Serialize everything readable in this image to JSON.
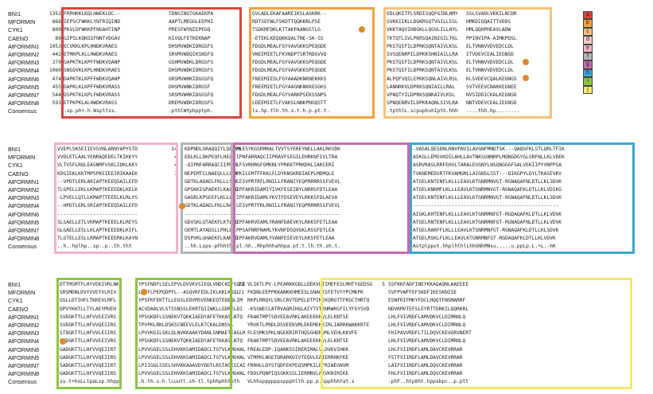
{
  "rows": [
    "BNI1",
    "MFORMIN",
    "CYK1",
    "CAENO",
    "AtFORMIN1",
    "AtFORMIN2",
    "AtFORMIN3",
    "AtFORMIN4",
    "AtFORMIN6",
    "AtFORMIN5",
    "AtFORMIN7",
    "AtFORMIN8",
    "Consensus"
  ],
  "legend": [
    {
      "letter": "a",
      "color": "#d9453d"
    },
    {
      "letter": "b",
      "color": "#f2a33a"
    },
    {
      "letter": "c",
      "color": "#f6c27c"
    },
    {
      "letter": "d",
      "color": "#f4c9c9"
    },
    {
      "letter": "e",
      "color": "#f2b3c8"
    },
    {
      "letter": "f",
      "color": "#b3b3b3"
    },
    {
      "letter": "g",
      "color": "#c86ab0"
    },
    {
      "letter": "h",
      "color": "#3aa6d6"
    },
    {
      "letter": "i",
      "color": "#8cc63f"
    },
    {
      "letter": "j",
      "color": "#f3e96a"
    }
  ],
  "block1": {
    "start_numbers": [
      "1352",
      "868",
      "809",
      "89",
      "1053",
      "442",
      "379",
      "1060",
      "474",
      "455",
      "544",
      "591",
      ""
    ],
    "seg1": [
      "FRPHKKLKQLHWEKLDC--",
      "IEPSCFWKKLYNTRIQIND",
      "PKVLDFWKKPFNGAHTINP",
      "GIPSLKQKGSFNNTVDGAV",
      "ECVKKLKPLHNDKVRAES",
      "ETMKPLKLLHWDKVRAES",
      "GAPKTKLKPFFWDKVQANP",
      "SNGQVKLKPLHNDKVRAES",
      "DAPKTKLKPFFWDKVQANP",
      "DAPKLKLKPFFWDKVRASS",
      "DSPKTKLKPLFWDKVRASS",
      "ETPKPKLALHWDKVRASS",
      ".sp.ph+.h.Wspltss."
    ],
    "seg2": [
      "TDNSINGTGKAEKPA",
      "AAPTLMEGGLEEPHI",
      "PRESFWYNIEPEGQ",
      "KIVQLFETKEKNAP",
      "DHSMVWDKIDRGSFS",
      "SRVMVWDQIKSNSFQ",
      "GSHMVWDKLDRGSFS",
      "DHSMVWDKIDRGSFS",
      "GRSMVWHKIDGGSFQ",
      "DHSMVWNKIDRGSF",
      "SRSMVWHKIDGGSFQ",
      "DREMVWDKIDRGSFS",
      ".pthlWtphpptph."
    ],
    "seg3": [
      "GVLADLEKAFAAREIKSLASKRK--",
      "RDTSEFWLFSKDTTQQKKRLPSE",
      "TSDKMFDKLKTTAKPAANGSTLG",
      "-ETEKLKEQQKKQALTNE-SK-SS",
      "FDGDLMEALFGYVAVGKKSPEQGDE",
      "VNEEMIETLFKVNDPTSRTRDGVVQ",
      "FDGDLMEALFGYVAVGKKSPEQGDE",
      "FDGDLMEALFGYVAVGKKSPEQGDE",
      "FNEEMIESLFGYAAADKNKNEKKKS",
      "FNEEMIETLFGYAAGNKNKKESGKS",
      "FDGDLMEALFGYVARKPSEKSSNPS",
      "LDEEMIETLFVAKSLNNKPNGQSTT",
      "ls.hp.tlh.th.s.t.h.p.pt.t."
    ],
    "seg4": [
      "EDLQKITFLSRDISQQFGINLHMY",
      "SVKKIIKLLDGKRSQTVGILLSSL",
      "VKKTAQVIHDGKLLQGVLILLHYL",
      "TKTQTLSVLPKRSQAINIGILTKL",
      "PKSTQIFILDPRKSQNTAIVLKSL",
      "SVSQENRPILDPKKSHNIAILLRA",
      "PKSTQIFILDPRKSQNTAIVLKSL",
      "PKSTQIFILDPRKSQNTAIVLKSL",
      "ALPQFVQILEPKKSQNLAIVLRSL",
      "LANNRKVLDPKKSQNIAILLRAL",
      "VPNQTYILDPRKSQNKAIVLKSL",
      "SPNQENRVILDPKKAQNLSIVLRA",
      ".tpthlL.scpuphuhIpth.hhh"
    ],
    "seg4b": [
      "SSLSVADLVKKILNCDR",
      "HMKDIQQAITTVDDS",
      "HMLQQHPHEAVLADW",
      "PPINVIPA-AIMKPDSL",
      "ELTVNNVVDVEDCLDL",
      "ITVDEVCEALIEGNSD",
      "ELTVNNVVDVEDCLDL",
      "ELTVNNVVDVEDCLDL",
      "KLSVDEVCQALKEGNGS",
      "SVTVEEVCNAKKEGNEE",
      "NVSIDDICKALKEGNSD",
      "NNTVDEVCEALIEGNSD",
      "....thh.hp........"
    ]
  },
  "block2": {
    "seg1": [
      "VVEPLSKSEIIEVSVNLARNYAPYSTD",
      "VVDLETLAALYENRAQEDELTKIKKYY",
      "VLTVSFLRQLEASNMFVSKLIDKLKKY",
      "KDGIEKLKKTMPSPKEIEEIRIKAAEK",
      "--VPDTLERLARIAPTKEEQSAILEFD",
      "TLGPELLEKLLKMAPTKEEEDKLKELK",
      "-LPVELLQTLLKMAPTTEEELKLRLYS",
      "--HPDTLERLSRIAPTKEEQSAILEFD",
      "---------------------------",
      "SLSAELLETLVKMAPTKEEELKLREYS",
      "GLGAELLESLLKLAPTKEEEDKLKIFL",
      "TLGTELLESLLKMAPTKEEERKLKAYN",
      "..h..hplhp..sp..p..th.tht"
    ],
    "seg1num": [
      "14",
      "",
      "",
      "",
      "4",
      "4",
      "",
      "",
      "",
      "",
      "",
      "1",
      ""
    ],
    "seg2": [
      "KDPNDLGRAQQIYLQLMVN",
      "EDLKLLDKPEQFLHELA",
      "-QIPNFARRAQCIIPRAV",
      "NEPEMTCLNAEQLLLLSK",
      "GDTKLADAELFKLLLSTF",
      "GPSKKIGPAEKFLKALLD",
      "GAGRLKPSEEFLKLLLE",
      "GDTKLADAELFKLLRAT",
      "-------------------",
      "GDVSKLGTAEKFLKTLLD",
      "GEMTLAYADSLLPHLLK",
      "DSPVKLGHAEKFLKAMLD",
      "..hh.Lsps-pFhhth."
    ],
    "seg3": [
      "MLESYKGSRMRALTVVTSYEREYNELLAKLRKVDK",
      "IPNFARRAQCIIPRAVFSEGILEHRKNFIVLTRA",
      "LFSVRHRGFGMKNLYPRKKTPRKDHLIAKCERI",
      "PKILEMTFFKKLFLDYKNSKRDIAEPLMDMQLE",
      "LESVPRTRFLRNILLFRANIYEQPRRRRSSFVEVL",
      "IPFAKRIDAMIYIVKFESEIBYLNRRSFDTLEAA",
      "IPFAKRIDAMLYKVTFDSEVEYLRKKSFDLAEVA",
      "LESVPRTFRLRNILLFRANIYEQPRRRRSSFVEVL",
      "-----------------------------------",
      "IPFAKRVEAMLYRANFDAEVKYLRKKSFETLEAA",
      "PPSAFNRFNAMLYKVNFDSQVGKLRSSFDTLEA",
      "IPFAKRVDAMLYVANFESEVEYLKKSFETLEAA",
      "pl.hh..Rhphhhahhpa.pt.t.lh.th.sh.t."
    ],
    "seg4": [
      "-VASALQESDNLRNVFNVILAVGNFMNDTSK---QAQGFKLSTLQRLTFIK",
      "ASKGLLEMSVKDILAHLLAVTNKSGNNRPLMQNGDGYGLSRFNLLKLVDEK",
      "ASRVRASLRRFEHVLTARALEVGNYLNSQNGGGFSALVEKIIPYVNPPSA",
      "TVKNEMEDSRTFKVAMGMLLAIGNSLSST---DIKGPYLDYLTKASEVKV",
      "ATGELKNTENFLKLLLEAVLKTGNRMNVGT-RGNAQAFNLDTLLKLSDVK",
      "ATGELKNRMFLKLLLEAVLKTGNRMNVGT-RGNAQAFKLDTLLKLVDIKG",
      "ATGELKNTENFLKLLLEAVLKTGNRMNVGT-RGNAQAFNLDTLLKLSDVK",
      "-------------------------------------------------",
      "AIGKLKHTENFLKLLLEAVLKTGNRMNFGT-RGDAQAFKLDTLLKLVDVK",
      "ATGELRNTENFLKLLLEAVLKTGNRMNFGT-RGNAQAFNLDTLLKLVDVK",
      "ATGELRARFFLKLLLEAVLKTGNRMNFGT-RGNAQAFKLDTLLKLSDVK",
      "ATGELRSKLFLKLLEAVLKTGNRMNFGT-RGDAQAFKLDTLLKLVDVK",
      "Astplppot.hhplhthlLhhGNhMNsu.....u.ppLp.L.+L.-hK"
    ]
  },
  "block3": {
    "seg1": [
      "DTTMSMTFLHYVEKIVRLN",
      "SRSMDNLDVYVVEYVLRIV",
      "GSLLDTIHFLTKKEVLMFL",
      "DPVYKHTLLTYLAEYMVEH",
      "SVDGKTTLLHFVVEEIVRS",
      "SVDGKTTLLHFVVQEIIRS",
      "STDGKTTLLHFVVLEIIRS",
      "SVDGKTTLLHFVVEEIVRS",
      "GADGKTTLLHFVVQEIIRT",
      "GADGKTTLLHFVVQEIIRS",
      "SADGKTTLLHFVVQEIIRT",
      "GADGKTTLLHFVVQEIIRS",
      "ss-t+hoLLtpaLsp.hhpp"
    ],
    "seg1num": [
      "",
      "45",
      "",
      "",
      "2",
      "4",
      "3",
      "",
      "8",
      "",
      "",
      "1",
      ""
    ],
    "seg2": [
      "YPSFNDFLSELEPVLDVVKVSIEQLVNDCKDFSQSI",
      "LPVFLPEPQDPFL--ASQVKFEDLIKLKKLKKQL",
      "YPSFKFEKTTLLEGSLEDVMSVENKEQTEDEQLIM",
      "ACVDAALVLSTSSNSSLEKRTQIIWKLLGDRELDI",
      "YPSGKDFLSSNEKVTQKKIAEDYAFETKKASLNTQ",
      "TPVPKLRKLDSKSCNEEVLELKTCKALDNSVL",
      "LPVVKGILSKLQLNVKKAAKYDANLSNMAETIAGLR",
      "YPSGKDFLSSNEKVTQKKIAEDYAFETKKASLNTQ",
      "LPVVGGELSSLEHVKKSAMIDADCLTGTVLKMGHAL",
      "LPVVGGELSSLEHVKKSAMIDADCLTGTVLKMGHAL",
      "LPIIGGLSSELSHVKKAAAVDYDDTLRSTAGISCAI",
      "LPVVGGELSSLEHVKKSAMIDADCLTGTVLKMGHAL",
      ".h.th.s-h.lcuutl.sh-tl.tphhphhtpth"
    ],
    "seg3": [
      "VLIKTLPV-LPEARKKGDLLDEKVLTIMEFESLMHTYGEDSG",
      "FKDNLEEPPKKANKKHMEESLSNAQKSFETVYYPCMKPK",
      "RKPLRRQYLSRLCRVTDPELDTPIMEKQRGTTFRSCTHRTQ",
      "-KSSWECLATRVAQRIHQLAIYTVTKNRWHSFILYFGYSVD",
      "FKAKTMPTSDVEEAVRKLAKEEEKKVLELKNTSE",
      "YRVKTLPRDLDSVEEKVMLEKEMEKKIRLIARRKWAKKRTE",
      "FLESMKSPKLNGEKRIRTHQSGHDNVMLVEHLKKVFE",
      "FKAKTMPTSDVEEAVRKLAKEEEKKVLELKNTSE",
      "FREALEDP-IQANKSSIRERIMALVLDVKVIHKK",
      "VTMPKLNGETDRARKDIVTEQVLEAIERRHKFKE",
      "FRRHLLDYSTQDFEKPEQSMPKILEFRIWEGNVM",
      "FDDLPQNPIQSGKKSSLIERMNVLAKVKNIMIKE",
      "VLhhsppppppsppphlth.pp.p.hpphhhYat.s"
    ],
    "seg3num": [
      "23",
      "",
      "",
      "",
      "",
      "",
      "",
      "",
      "",
      "",
      "",
      "",
      "21"
    ],
    "seg4": [
      "SSFKKFADFINEYKKAQAQNLAAEEEE",
      "SVFPVWFFEFSKDFIKESKNISE",
      "ESNFRIFMKYFDCLHQQTFNSMARRF",
      "NDVKMVTEFSLEYRTTDRKILQQRKRL",
      "LHLFVIVRDFLAMVDKVCLDIMRNLQ",
      "LHLFVIVRDFLAMVDKVCLDIMRNLQ",
      "FHIPAVVRDFLTILDQVCKEVGRVNERT",
      "LHLFVIVRDFLAMVDKVCLDIMRNLQ",
      "LHLFVIIRDFLAMLDAVCKEVRRAR",
      "FSTFVIIRDFLAMLDAVCKEVRRAR",
      "LAIFVIIRDFLAMLDQVCKEVRRAR",
      "FHLFVIIRDFLAMLDQVCKEVRRAR",
      ".phF..htp8ht.hppsbpc..p.ptt"
    ],
    "seg4num": [
      "5",
      "",
      "",
      "",
      "",
      "",
      "",
      "",
      "",
      "",
      "",
      "",
      ""
    ]
  }
}
